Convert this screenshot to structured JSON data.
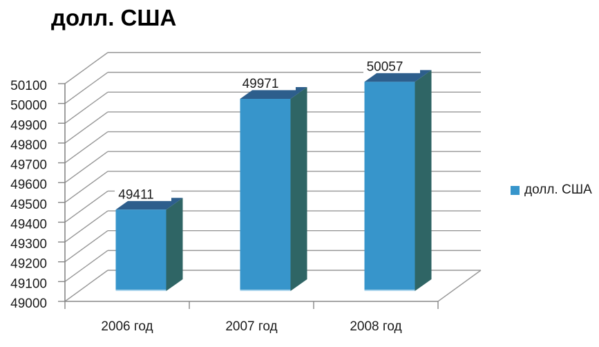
{
  "title": "долл. США",
  "legend": {
    "label": "долл. США"
  },
  "chart_data": {
    "type": "bar",
    "view": "3d-column",
    "title": "долл. США",
    "categories": [
      "2006 год",
      "2007 год",
      "2008 год"
    ],
    "series": [
      {
        "name": "долл. США",
        "values": [
          49411,
          49971,
          50057
        ]
      }
    ],
    "data_labels": [
      "49411",
      "49971",
      "50057"
    ],
    "xlabel": "",
    "ylabel": "",
    "ylim": [
      49000,
      50100
    ],
    "ytick_step": 100,
    "ytick_labels": [
      "49000",
      "49100",
      "49200",
      "49300",
      "49400",
      "49500",
      "49600",
      "49700",
      "49800",
      "49900",
      "50000",
      "50100"
    ],
    "grid": true,
    "legend_position": "right",
    "colors": {
      "bar_front": "#3795CB",
      "bar_front_base_edge": "#A9D4EC",
      "bar_top": "#2D5E8C",
      "bar_side": "#2F6565",
      "gridline": "#969696",
      "axis": "#858585",
      "text": "#1A1A1A",
      "background": "#FFFFFF"
    }
  }
}
